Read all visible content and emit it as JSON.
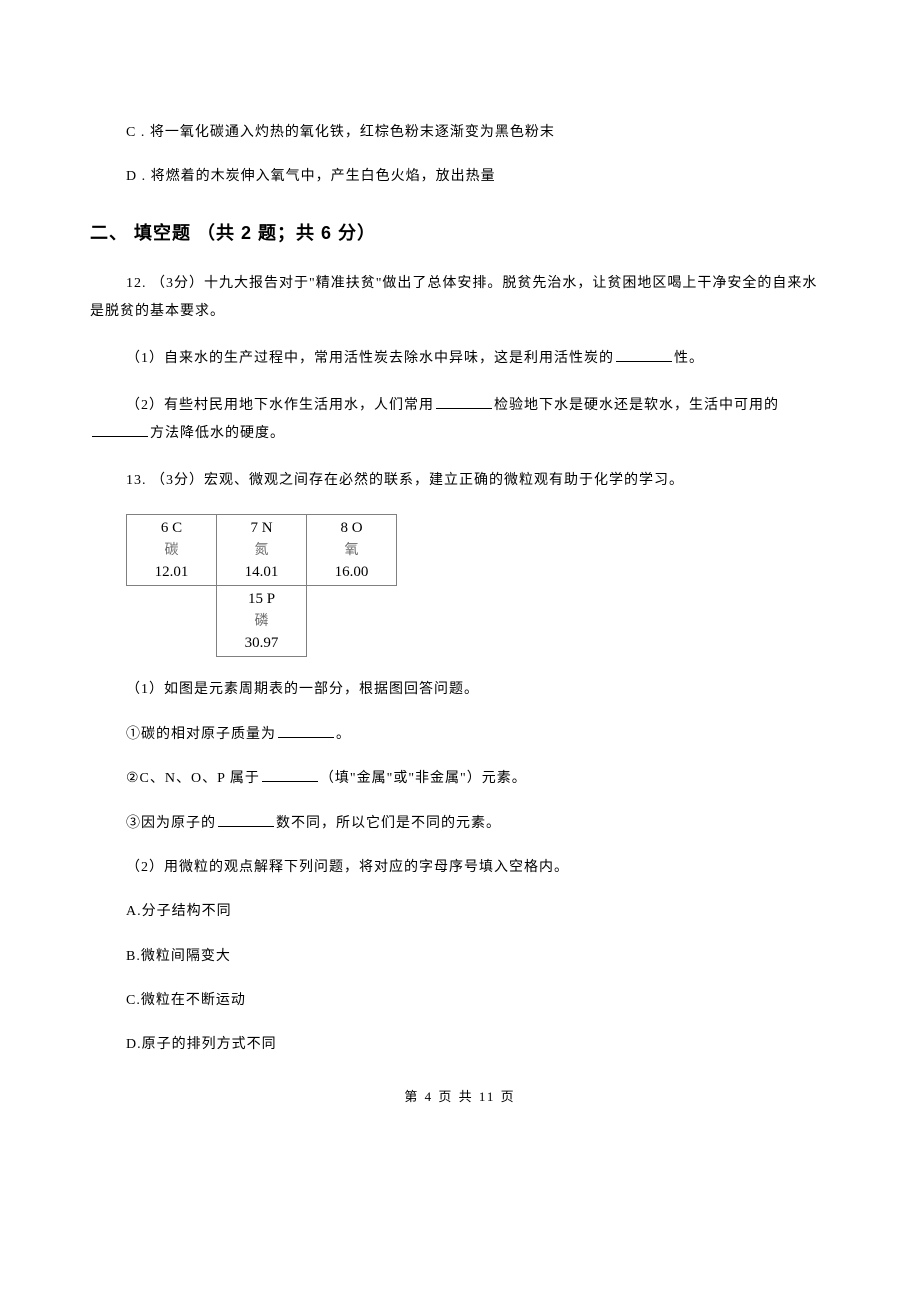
{
  "q11": {
    "optC": "C . 将一氧化碳通入灼热的氧化铁，红棕色粉末逐渐变为黑色粉末",
    "optD": "D . 将燃着的木炭伸入氧气中，产生白色火焰，放出热量"
  },
  "section2": {
    "heading": "二、 填空题 （共 2 题；共 6 分）"
  },
  "q12": {
    "intro_a": "12. （3分）十九大报告对于\"精准扶贫\"做出了总体安排。脱贫先治水，让贫困地区喝上干净安全的自来水是脱贫的基本要求。",
    "p1_a": "（1）自来水的生产过程中，常用活性炭去除水中异味，这是利用活性炭的",
    "p1_b": "性。",
    "p2_a": "（2）有些村民用地下水作生活用水，人们常用",
    "p2_b": "检验地下水是硬水还是软水，生活中可用的",
    "p2_c": "方法降低水的硬度。"
  },
  "q13": {
    "intro": "13. （3分）宏观、微观之间存在必然的联系，建立正确的微粒观有助于化学的学习。",
    "table": {
      "cells": [
        {
          "num": "6 C",
          "name": "碳",
          "mass": "12.01"
        },
        {
          "num": "7 N",
          "name": "氮",
          "mass": "14.01"
        },
        {
          "num": "8 O",
          "name": "氧",
          "mass": "16.00"
        },
        {
          "num": "15 P",
          "name": "磷",
          "mass": "30.97"
        }
      ]
    },
    "p1": "（1）如图是元素周期表的一部分，根据图回答问题。",
    "p1_1a": "①碳的相对原子质量为",
    "p1_1b": "。",
    "p1_2a": "②C、N、O、P 属于",
    "p1_2b": "（填\"金属\"或\"非金属\"）元素。",
    "p1_3a": "③因为原子的",
    "p1_3b": "数不同，所以它们是不同的元素。",
    "p2": "（2）用微粒的观点解释下列问题，将对应的字母序号填入空格内。",
    "choiceA": "A.分子结构不同",
    "choiceB": "B.微粒间隔变大",
    "choiceC": "C.微粒在不断运动",
    "choiceD": "D.原子的排列方式不同"
  },
  "footer": {
    "text": "第 4 页 共 11 页"
  }
}
